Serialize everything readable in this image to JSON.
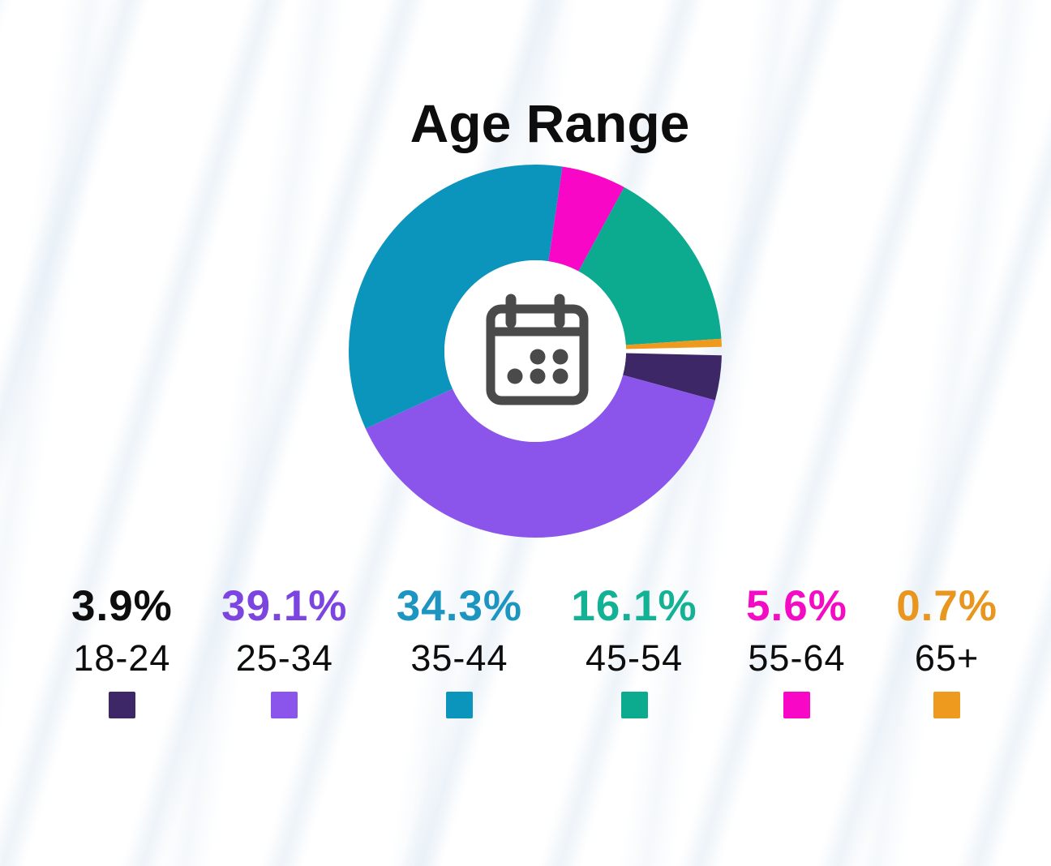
{
  "page": {
    "background_color": "#ffffff",
    "stripe_color": "#e3edf6"
  },
  "title": "Age Range",
  "chart_data": {
    "type": "pie",
    "subtype": "donut",
    "title": "Age Range",
    "unit": "%",
    "categories": [
      "18-24",
      "25-34",
      "35-44",
      "45-54",
      "55-64",
      "65+"
    ],
    "values": [
      3.9,
      39.1,
      34.3,
      16.1,
      5.6,
      0.7
    ],
    "segments": [
      {
        "label": "18-24",
        "value": 3.9,
        "display": "3.9%",
        "color": "#3e2766",
        "pct_color": "#0d0d0d"
      },
      {
        "label": "25-34",
        "value": 39.1,
        "display": "39.1%",
        "color": "#8b55ec",
        "pct_color": "#7d45e0"
      },
      {
        "label": "35-44",
        "value": 34.3,
        "display": "34.3%",
        "color": "#0b95bd",
        "pct_color": "#1d95c1"
      },
      {
        "label": "45-54",
        "value": 16.1,
        "display": "16.1%",
        "color": "#0cab90",
        "pct_color": "#14b295"
      },
      {
        "label": "55-64",
        "value": 5.6,
        "display": "5.6%",
        "color": "#f807c6",
        "pct_color": "#f30cc4"
      },
      {
        "label": "65+",
        "value": 0.7,
        "display": "0.7%",
        "color": "#ee9a1e",
        "pct_color": "#e8961e"
      }
    ],
    "draw_order": [
      "18-24",
      "25-34",
      "35-44",
      "55-64",
      "45-54",
      "65+"
    ],
    "start_angle_deg_from_east": 0,
    "direction": "clockwise",
    "gap_deg": 2.6,
    "outer_radius": 230,
    "inner_radius": 112,
    "hole_color": "#ffffff",
    "center_icon": "calendar-icon",
    "center_icon_color": "#4a4a4a",
    "legend_position": "bottom",
    "grid": false
  }
}
